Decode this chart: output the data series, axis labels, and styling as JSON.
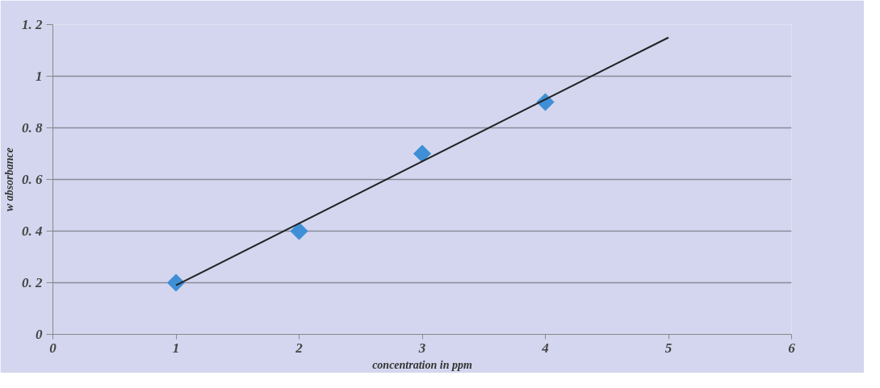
{
  "chart_data": {
    "type": "scatter",
    "xlabel": "concentration in ppm",
    "ylabel": "w absorbance",
    "x": [
      1,
      2,
      3,
      4
    ],
    "series": [
      {
        "color": "#3f8fd6",
        "marker": "diamond",
        "values": [
          0.2,
          0.4,
          0.7,
          0.9
        ]
      },
      {
        "type": "line",
        "color": "#222222",
        "marker": "none",
        "line_style": "solid",
        "x": [
          1,
          5
        ],
        "values": [
          0.19,
          1.15
        ]
      }
    ],
    "xlim": [
      0,
      6
    ],
    "xticks": [
      0,
      1,
      2,
      3,
      4,
      5,
      6
    ],
    "ylim": [
      0,
      1.2
    ],
    "yticks": [
      0,
      {
        "value": 0.2,
        "label": "0. 2"
      },
      {
        "value": 0.4,
        "label": "0. 4"
      },
      {
        "value": 0.6,
        "label": "0. 6"
      },
      {
        "value": 0.8,
        "label": "0. 8"
      },
      1,
      {
        "value": 1.2,
        "label": "1. 2"
      }
    ],
    "grid": "y"
  }
}
